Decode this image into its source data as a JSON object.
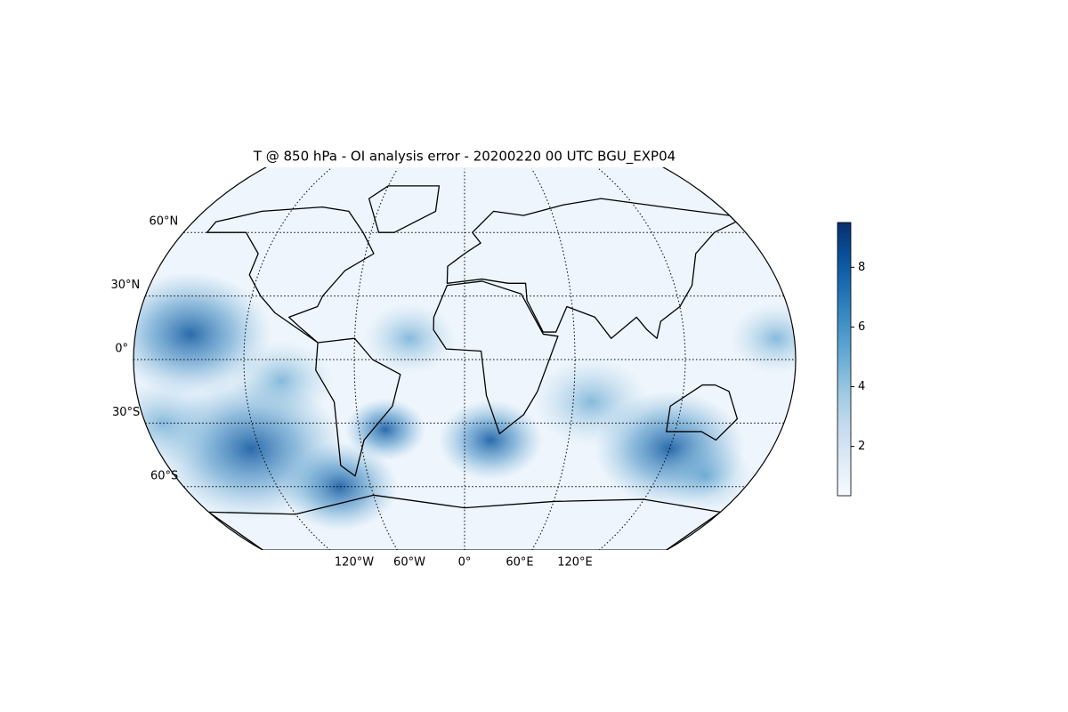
{
  "chart_data": {
    "type": "map",
    "title": "T @ 850 hPa - OI analysis error - 20200220 00 UTC BGU_EXP04",
    "lat_labels": [
      {
        "value": 60,
        "label": "60°N"
      },
      {
        "value": 30,
        "label": "30°N"
      },
      {
        "value": 0,
        "label": "0°"
      },
      {
        "value": -30,
        "label": "30°S"
      },
      {
        "value": -60,
        "label": "60°S"
      }
    ],
    "lon_labels": [
      {
        "value": -120,
        "label": "120°W"
      },
      {
        "value": -60,
        "label": "60°W"
      },
      {
        "value": 0,
        "label": "0°"
      },
      {
        "value": 60,
        "label": "60°E"
      },
      {
        "value": 120,
        "label": "120°E"
      }
    ],
    "colorbar": {
      "colormap": "Blues",
      "lim": [
        0.35,
        9.5
      ],
      "ticks": [
        2,
        4,
        6,
        8
      ]
    }
  }
}
